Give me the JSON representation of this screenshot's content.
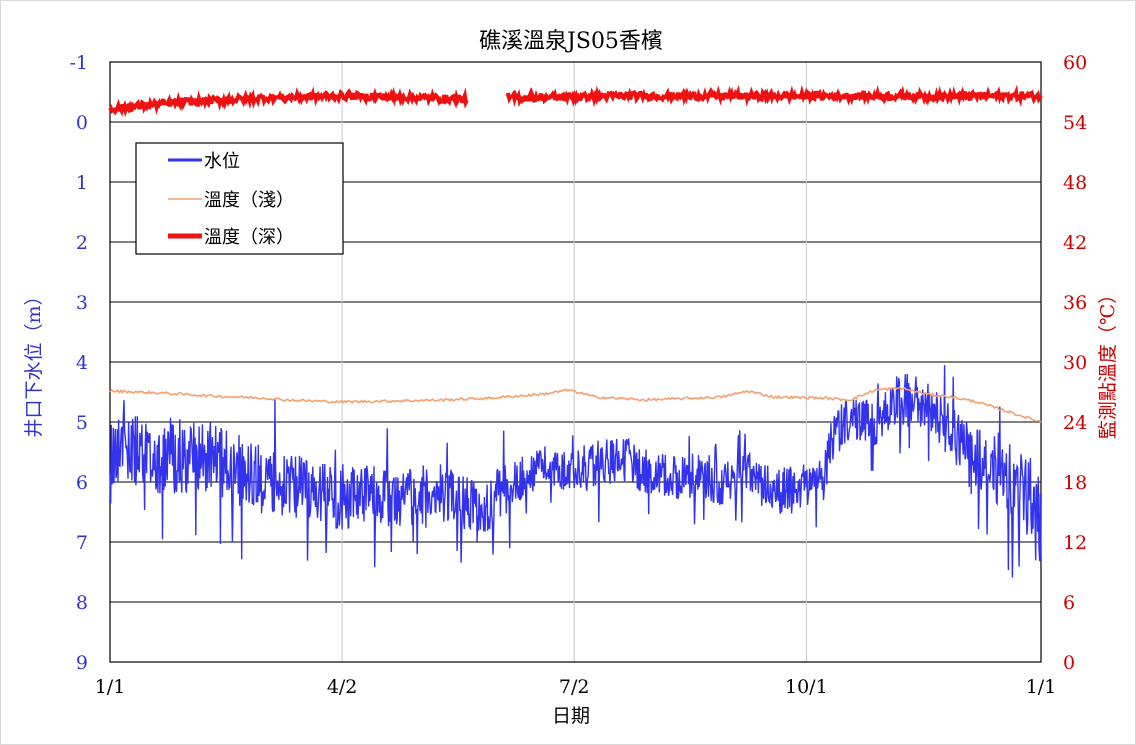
{
  "chart_data": {
    "type": "line",
    "title": "礁溪溫泉JS05香檳",
    "xlabel": "日期",
    "ylabel_left": "井口下水位（m）",
    "ylabel_right": "監測點溫度（℃）",
    "x_ticks": [
      "1/1",
      "4/2",
      "7/2",
      "10/1",
      "1/1"
    ],
    "x_range_days": [
      0,
      365
    ],
    "y_left_ticks": [
      "-1",
      "0",
      "1",
      "2",
      "3",
      "4",
      "5",
      "6",
      "7",
      "8",
      "9"
    ],
    "y_left_range": [
      -1,
      9
    ],
    "y_left_inverted": true,
    "y_right_ticks": [
      "60",
      "54",
      "48",
      "42",
      "36",
      "30",
      "24",
      "18",
      "12",
      "6",
      "0"
    ],
    "y_right_range": [
      0,
      60
    ],
    "grid": "horizontal major lines (black) and vertical lines at x ticks (gray)",
    "legend_position": "upper-left inside plot",
    "legend": [
      "水位",
      "溫度（淺）",
      "溫度（深）"
    ],
    "colors": {
      "water_level": "#3333ee",
      "temp_shallow": "#f4a070",
      "temp_deep": "#ee1111",
      "left_axis_text": "#3333cc",
      "right_axis_text": "#cc0000"
    },
    "series": [
      {
        "name": "水位",
        "axis": "left",
        "style": "noisy band",
        "x": [
          0,
          5,
          10,
          20,
          30,
          40,
          50,
          60,
          70,
          80,
          90,
          100,
          110,
          120,
          130,
          140,
          145,
          150,
          160,
          170,
          180,
          190,
          200,
          210,
          220,
          230,
          240,
          250,
          260,
          270,
          280,
          282,
          290,
          300,
          305,
          310,
          320,
          330,
          340,
          350,
          360,
          365
        ],
        "y_center": [
          5.6,
          5.2,
          5.6,
          5.5,
          5.6,
          5.6,
          5.8,
          5.9,
          6.1,
          6.1,
          6.3,
          6.2,
          6.3,
          6.2,
          6.2,
          6.3,
          6.5,
          6.3,
          6.0,
          5.7,
          5.9,
          5.7,
          5.6,
          5.8,
          5.9,
          5.9,
          6.0,
          5.8,
          6.2,
          6.1,
          6.0,
          5.4,
          4.9,
          5.0,
          4.8,
          4.6,
          4.7,
          5.2,
          5.6,
          5.9,
          6.2,
          6.8
        ],
        "y_amp": [
          0.8,
          0.6,
          0.7,
          0.7,
          0.6,
          0.6,
          0.6,
          0.6,
          0.6,
          0.5,
          0.6,
          0.5,
          0.5,
          0.5,
          0.5,
          0.5,
          0.4,
          0.5,
          0.4,
          0.3,
          0.4,
          0.4,
          0.4,
          0.4,
          0.4,
          0.4,
          0.4,
          0.4,
          0.4,
          0.4,
          0.4,
          0.4,
          0.4,
          0.4,
          0.4,
          0.5,
          0.4,
          0.5,
          0.5,
          0.6,
          0.7,
          0.8
        ]
      },
      {
        "name": "溫度（淺）",
        "axis": "right",
        "style": "line",
        "x": [
          0,
          20,
          40,
          60,
          70,
          90,
          110,
          130,
          150,
          170,
          180,
          190,
          210,
          240,
          250,
          260,
          280,
          290,
          300,
          310,
          320,
          330,
          340,
          350,
          365
        ],
        "y": [
          27.1,
          26.9,
          26.6,
          26.4,
          26.2,
          26.0,
          26.1,
          26.2,
          26.4,
          26.8,
          27.2,
          26.5,
          26.2,
          26.5,
          27.1,
          26.5,
          26.4,
          26.2,
          27.2,
          27.4,
          26.8,
          26.5,
          26.0,
          25.2,
          24.0
        ]
      },
      {
        "name": "溫度（深）",
        "axis": "right",
        "style": "thick noisy band",
        "x": [
          0,
          15,
          30,
          60,
          90,
          110,
          140,
          144,
          155,
          180,
          200,
          230,
          260,
          280,
          300,
          330,
          365
        ],
        "y": [
          55.3,
          55.7,
          56.0,
          56.4,
          56.6,
          56.5,
          56.3,
          null,
          56.4,
          56.5,
          56.6,
          56.6,
          56.6,
          56.6,
          56.6,
          56.6,
          56.6
        ]
      }
    ]
  }
}
